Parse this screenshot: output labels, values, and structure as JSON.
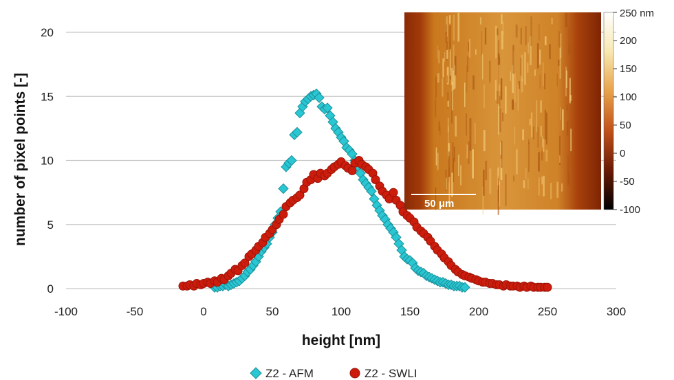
{
  "chart_data": {
    "type": "scatter",
    "xlabel": "height [nm]",
    "ylabel": "number of pixel points [-]",
    "xlim": [
      -100,
      300
    ],
    "ylim": [
      0,
      20
    ],
    "xticks": [
      "-100",
      "-50",
      "0",
      "50",
      "100",
      "150",
      "200",
      "250",
      "300"
    ],
    "yticks": [
      "0",
      "5",
      "10",
      "15",
      "20"
    ],
    "grid": "horizontal",
    "legend": "bottom",
    "series": [
      {
        "name": "Z2 - AFM",
        "color": "#29c7d3",
        "marker": "diamond",
        "x": [
          8,
          10,
          12,
          14,
          16,
          18,
          20,
          22,
          24,
          26,
          28,
          30,
          32,
          34,
          36,
          38,
          40,
          42,
          44,
          46,
          48,
          50,
          52,
          54,
          56,
          58,
          60,
          62,
          64,
          66,
          68,
          70,
          72,
          74,
          76,
          78,
          80,
          82,
          84,
          86,
          88,
          90,
          92,
          94,
          96,
          98,
          100,
          102,
          104,
          106,
          108,
          110,
          112,
          114,
          116,
          118,
          120,
          122,
          124,
          126,
          128,
          130,
          132,
          134,
          136,
          138,
          140,
          142,
          144,
          146,
          148,
          150,
          152,
          154,
          156,
          158,
          160,
          162,
          164,
          166,
          168,
          170,
          172,
          174,
          176,
          178,
          180,
          182,
          184,
          186,
          188,
          190
        ],
        "y": [
          0.1,
          0.1,
          0.2,
          0.2,
          0.3,
          0.2,
          0.3,
          0.4,
          0.5,
          0.6,
          0.8,
          1.0,
          1.3,
          1.5,
          1.8,
          2.1,
          2.5,
          2.9,
          3.2,
          3.5,
          4.0,
          4.4,
          5.0,
          5.5,
          6.0,
          7.8,
          9.5,
          9.8,
          10.0,
          12.0,
          12.2,
          13.7,
          14.2,
          14.6,
          14.8,
          15.0,
          15.1,
          15.2,
          14.9,
          14.2,
          14.0,
          14.1,
          13.5,
          13.0,
          12.5,
          12.2,
          11.8,
          11.5,
          11.0,
          10.8,
          10.5,
          10.0,
          9.5,
          9.0,
          8.5,
          8.2,
          7.9,
          7.6,
          7.0,
          6.5,
          6.1,
          5.7,
          5.4,
          5.0,
          4.7,
          4.4,
          4.0,
          3.5,
          3.0,
          2.5,
          2.3,
          2.2,
          2.0,
          1.6,
          1.4,
          1.3,
          1.2,
          1.0,
          0.9,
          0.8,
          0.7,
          0.6,
          0.5,
          0.5,
          0.4,
          0.3,
          0.3,
          0.2,
          0.2,
          0.2,
          0.1,
          0.1
        ]
      },
      {
        "name": "Z2 - SWLI",
        "color": "#cc1c0c",
        "marker": "circle",
        "x": [
          -15,
          -12,
          -10,
          -7,
          -5,
          -2,
          0,
          3,
          5,
          8,
          10,
          13,
          15,
          18,
          20,
          23,
          25,
          28,
          30,
          33,
          35,
          38,
          40,
          43,
          45,
          48,
          50,
          53,
          55,
          58,
          60,
          63,
          65,
          68,
          70,
          73,
          75,
          78,
          80,
          83,
          85,
          88,
          90,
          93,
          95,
          98,
          100,
          103,
          105,
          108,
          110,
          113,
          115,
          118,
          120,
          123,
          125,
          128,
          130,
          133,
          135,
          138,
          140,
          143,
          145,
          148,
          150,
          153,
          155,
          158,
          160,
          163,
          165,
          168,
          170,
          173,
          175,
          178,
          180,
          183,
          185,
          188,
          190,
          193,
          195,
          198,
          200,
          203,
          205,
          208,
          210,
          213,
          215,
          218,
          220,
          223,
          225,
          228,
          230,
          233,
          235,
          238,
          240,
          243,
          245,
          248,
          250
        ],
        "y": [
          0.2,
          0.2,
          0.3,
          0.2,
          0.4,
          0.3,
          0.4,
          0.5,
          0.4,
          0.6,
          0.5,
          0.8,
          0.7,
          1.0,
          1.2,
          1.5,
          1.4,
          1.8,
          2.0,
          2.5,
          2.7,
          3.0,
          3.3,
          3.6,
          4.0,
          4.3,
          4.6,
          5.0,
          5.4,
          5.8,
          6.4,
          6.7,
          6.9,
          7.1,
          7.3,
          7.8,
          8.3,
          8.5,
          8.9,
          8.6,
          9.0,
          8.8,
          9.0,
          9.3,
          9.5,
          9.7,
          9.9,
          9.6,
          9.4,
          9.2,
          9.8,
          10.0,
          9.7,
          9.5,
          9.3,
          9.0,
          8.5,
          8.0,
          7.6,
          7.3,
          7.0,
          7.5,
          6.9,
          6.5,
          6.0,
          5.7,
          5.5,
          5.2,
          4.8,
          4.5,
          4.3,
          4.0,
          3.7,
          3.3,
          3.0,
          2.7,
          2.4,
          2.1,
          1.8,
          1.5,
          1.3,
          1.1,
          1.0,
          0.9,
          0.8,
          0.7,
          0.6,
          0.5,
          0.5,
          0.4,
          0.4,
          0.3,
          0.3,
          0.2,
          0.3,
          0.2,
          0.2,
          0.2,
          0.1,
          0.2,
          0.1,
          0.2,
          0.1,
          0.1,
          0.1,
          0.1,
          0.1
        ]
      }
    ]
  },
  "inset": {
    "scale_bar_label": "50 μm",
    "colorbar_ticks": [
      "250 nm",
      "200",
      "150",
      "100",
      "50",
      "0",
      "-50",
      "-100"
    ],
    "colorbar_values": [
      250,
      200,
      150,
      100,
      50,
      0,
      -50,
      -100
    ]
  }
}
